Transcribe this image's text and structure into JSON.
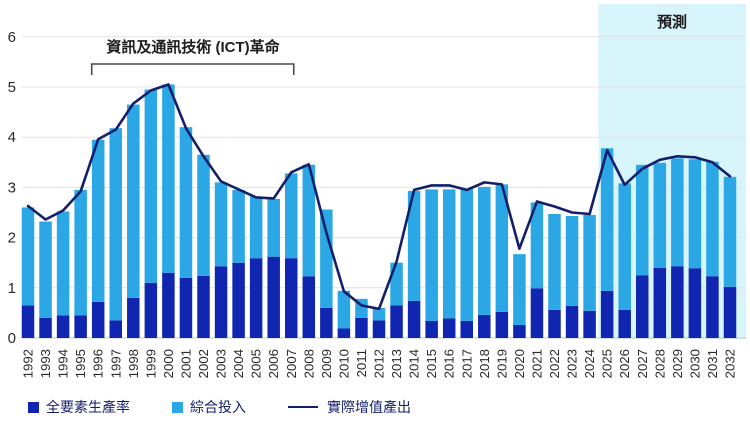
{
  "chart_data": {
    "type": "bar",
    "stacked": true,
    "title": "",
    "xlabel": "",
    "ylabel": "",
    "ylim": [
      0,
      6
    ],
    "yticks": [
      "0",
      "1",
      "2",
      "3",
      "4",
      "5",
      "6"
    ],
    "grid": true,
    "legend_position": "bottom",
    "categories": [
      "1992",
      "1993",
      "1994",
      "1995",
      "1996",
      "1997",
      "1998",
      "1999",
      "2000",
      "2001",
      "2002",
      "2003",
      "2004",
      "2005",
      "2006",
      "2007",
      "2008",
      "2009",
      "2010",
      "2011",
      "2012",
      "2013",
      "2014",
      "2015",
      "2016",
      "2017",
      "2018",
      "2019",
      "2020",
      "2021",
      "2022",
      "2023",
      "2024",
      "2025",
      "2026",
      "2027",
      "2028",
      "2029",
      "2030",
      "2031",
      "2032"
    ],
    "series": [
      {
        "name": "全要素生產率",
        "type": "bar",
        "color": "#1126b0",
        "values": [
          0.65,
          0.4,
          0.45,
          0.45,
          0.72,
          0.35,
          0.8,
          1.1,
          1.3,
          1.2,
          1.24,
          1.43,
          1.5,
          1.59,
          1.62,
          1.59,
          1.23,
          0.6,
          0.19,
          0.4,
          0.35,
          0.65,
          0.74,
          0.34,
          0.39,
          0.34,
          0.46,
          0.52,
          0.26,
          0.99,
          0.56,
          0.64,
          0.54,
          0.94,
          0.56,
          1.25,
          1.4,
          1.43,
          1.39,
          1.23,
          1.02
        ]
      },
      {
        "name": "綜合投入",
        "type": "bar",
        "color": "#2aa7e4",
        "values": [
          1.95,
          1.92,
          2.07,
          2.5,
          3.23,
          3.83,
          3.85,
          3.85,
          3.75,
          3.0,
          2.41,
          1.67,
          1.45,
          1.23,
          1.15,
          1.69,
          2.22,
          1.96,
          0.75,
          0.38,
          0.25,
          0.85,
          2.19,
          2.62,
          2.57,
          2.63,
          2.55,
          2.54,
          1.41,
          1.71,
          1.91,
          1.79,
          1.91,
          2.84,
          2.52,
          2.2,
          2.09,
          2.15,
          2.17,
          2.28,
          2.19
        ]
      },
      {
        "name": "實際增值產出",
        "type": "line",
        "color": "#131f6b",
        "values": [
          2.63,
          2.36,
          2.54,
          2.92,
          3.96,
          4.15,
          4.67,
          4.93,
          5.05,
          4.18,
          3.62,
          3.12,
          2.96,
          2.8,
          2.78,
          3.3,
          3.46,
          2.1,
          0.93,
          0.65,
          0.58,
          1.52,
          2.95,
          3.04,
          3.04,
          2.95,
          3.1,
          3.06,
          1.78,
          2.72,
          2.62,
          2.5,
          2.47,
          3.74,
          3.05,
          3.37,
          3.55,
          3.62,
          3.6,
          3.5,
          3.22
        ]
      }
    ],
    "annotations": {
      "bracket_label": "資訊及通訊技術 (ICT)革命",
      "bracket_range": [
        "1996",
        "2007"
      ],
      "forecast_label": "預測",
      "forecast_start": "2025",
      "forecast_color": "#d9f5fc"
    }
  },
  "colors": {
    "grid": "#e3e3e3",
    "axis": "#c9c9c9",
    "tick_text": "#2a2a2a",
    "annotation_text": "#1d1d1f",
    "bracket": "#4a4a4a"
  }
}
